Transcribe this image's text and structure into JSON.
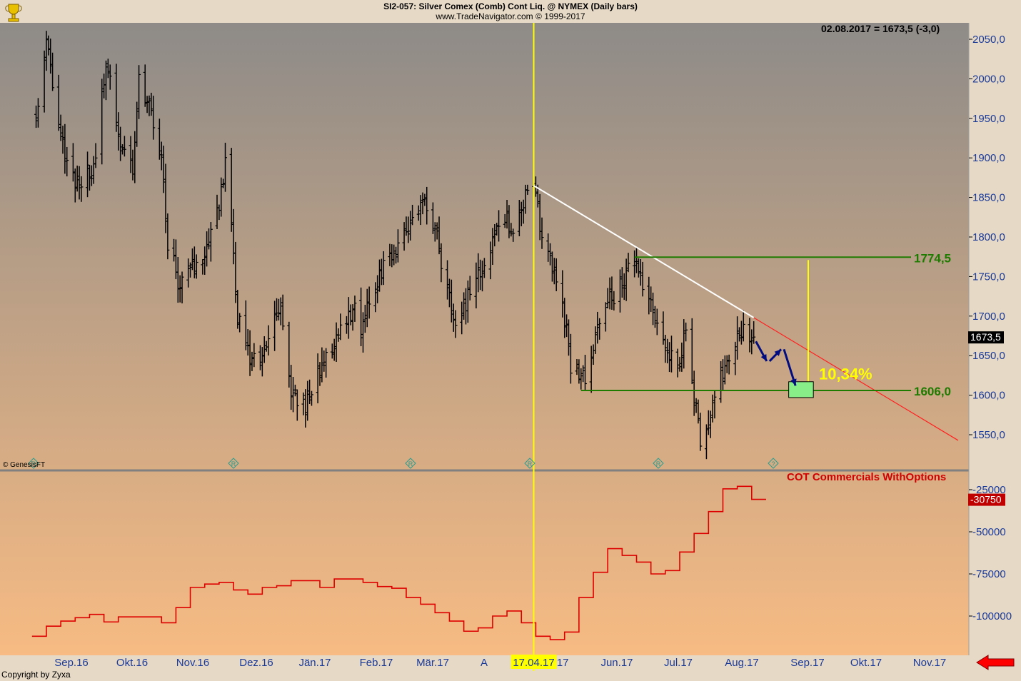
{
  "header": {
    "title": "SI2-057:  Silver Comex (Comb) Cont Liq. @ NYMEX  (Daily bars)",
    "subtitle": "www.TradeNavigator.com © 1999-2017",
    "last_quote": "02.08.2017 = 1673,5 (-3,0)"
  },
  "footer": {
    "copyright": "Copyright by Zyxa",
    "genesis": "© GenesisFT"
  },
  "colors": {
    "background_top": "#8e8b88",
    "background_bottom": "#f7bb83",
    "bars": "#000000",
    "cot_line": "#dd0000",
    "support_resistance": "#1f7a00",
    "vertical_marker": "#ffff00",
    "trendline_white": "#ffffff",
    "trendline_red": "#ff2020",
    "arrows": "#000c80",
    "target_box": "#88ee88",
    "left_arrow": "#ff0000"
  },
  "chart_data": [
    {
      "type": "ohlc",
      "title": "SI2-057:  Silver Comex (Comb) Cont Liq. @ NYMEX  (Daily bars)",
      "x_ticks": [
        "Sep.16",
        "Okt.16",
        "Nov.16",
        "Dez.16",
        "Jän.17",
        "Feb.17",
        "Mär.17",
        "A",
        "Mai.17",
        "Jun.17",
        "Jul.17",
        "Aug.17",
        "Sep.17",
        "Okt.17",
        "Nov.17"
      ],
      "highlighted_date": "17.04.17",
      "y_ticks": [
        "2050,0",
        "2000,0",
        "1950,0",
        "1900,0",
        "1850,0",
        "1800,0",
        "1750,0",
        "1700,0",
        "1650,0",
        "1600,0",
        "1550,0"
      ],
      "ylim": [
        1500,
        2070
      ],
      "last_value_label": "1673,5",
      "waypoints": [
        [
          "2016-08-18",
          1960
        ],
        [
          "2016-08-23",
          2045
        ],
        [
          "2016-08-30",
          1930
        ],
        [
          "2016-09-05",
          1875
        ],
        [
          "2016-09-08",
          1858
        ],
        [
          "2016-09-16",
          1898
        ],
        [
          "2016-09-21",
          2020
        ],
        [
          "2016-09-28",
          1920
        ],
        [
          "2016-10-04",
          1888
        ],
        [
          "2016-10-07",
          2002
        ],
        [
          "2016-10-14",
          1945
        ],
        [
          "2016-10-19",
          1882
        ],
        [
          "2016-10-21",
          1790
        ],
        [
          "2016-10-26",
          1745
        ],
        [
          "2016-11-01",
          1758
        ],
        [
          "2016-11-08",
          1768
        ],
        [
          "2016-11-14",
          1832
        ],
        [
          "2016-11-18",
          1890
        ],
        [
          "2016-11-21",
          1822
        ],
        [
          "2016-11-24",
          1700
        ],
        [
          "2016-12-01",
          1640
        ],
        [
          "2016-12-06",
          1642
        ],
        [
          "2016-12-09",
          1672
        ],
        [
          "2016-12-13",
          1715
        ],
        [
          "2016-12-16",
          1700
        ],
        [
          "2016-12-20",
          1605
        ],
        [
          "2016-12-27",
          1588
        ],
        [
          "2017-01-03",
          1630
        ],
        [
          "2017-01-10",
          1668
        ],
        [
          "2017-01-16",
          1698
        ],
        [
          "2017-01-19",
          1712
        ],
        [
          "2017-01-23",
          1688
        ],
        [
          "2017-01-26",
          1712
        ],
        [
          "2017-02-01",
          1752
        ],
        [
          "2017-02-08",
          1782
        ],
        [
          "2017-02-14",
          1808
        ],
        [
          "2017-02-20",
          1830
        ],
        [
          "2017-02-24",
          1845
        ],
        [
          "2017-03-01",
          1795
        ],
        [
          "2017-03-06",
          1728
        ],
        [
          "2017-03-10",
          1700
        ],
        [
          "2017-03-14",
          1708
        ],
        [
          "2017-03-20",
          1750
        ],
        [
          "2017-03-27",
          1780
        ],
        [
          "2017-03-31",
          1820
        ],
        [
          "2017-04-04",
          1825
        ],
        [
          "2017-04-07",
          1800
        ],
        [
          "2017-04-11",
          1835
        ],
        [
          "2017-04-13",
          1850
        ],
        [
          "2017-04-17",
          1862
        ],
        [
          "2017-04-21",
          1805
        ],
        [
          "2017-04-26",
          1765
        ],
        [
          "2017-05-01",
          1720
        ],
        [
          "2017-05-05",
          1640
        ],
        [
          "2017-05-09",
          1625
        ],
        [
          "2017-05-12",
          1625
        ],
        [
          "2017-05-18",
          1680
        ],
        [
          "2017-05-24",
          1720
        ],
        [
          "2017-05-30",
          1742
        ],
        [
          "2017-06-06",
          1770
        ],
        [
          "2017-06-09",
          1740
        ],
        [
          "2017-06-14",
          1700
        ],
        [
          "2017-06-20",
          1665
        ],
        [
          "2017-06-26",
          1640
        ],
        [
          "2017-06-30",
          1680
        ],
        [
          "2017-07-04",
          1600
        ],
        [
          "2017-07-06",
          1558
        ],
        [
          "2017-07-07",
          1530
        ],
        [
          "2017-07-10",
          1550
        ],
        [
          "2017-07-13",
          1585
        ],
        [
          "2017-07-17",
          1620
        ],
        [
          "2017-07-21",
          1652
        ],
        [
          "2017-07-26",
          1680
        ],
        [
          "2017-07-28",
          1688
        ],
        [
          "2017-08-02",
          1673.5
        ]
      ],
      "overlays": {
        "resistance": {
          "value": 1774.5,
          "label": "1774,5",
          "from": "2017-06-05"
        },
        "support": {
          "value": 1606.0,
          "label": "1606,0",
          "from": "2017-05-10"
        },
        "projection_percent": "10,34%",
        "downtrend_from": [
          "2017-04-17",
          1865
        ],
        "downtrend_to": [
          "2017-08-02",
          1698
        ],
        "projected_path": [
          [
            "2017-08-02",
            1668
          ],
          [
            "2017-08-09",
            1643
          ],
          [
            "2017-08-16",
            1658
          ],
          [
            "2017-08-23",
            1612
          ]
        ],
        "target_zone": {
          "from": "2017-08-19",
          "to": "2017-08-31",
          "low": 1597,
          "high": 1617
        },
        "event_markers": [
          "R",
          "R",
          "R",
          "R",
          "R",
          "?"
        ]
      }
    },
    {
      "type": "line",
      "series": [
        {
          "name": "COT Commercials WithOptions"
        }
      ],
      "y_ticks": [
        "-25000",
        "-50000",
        "-75000",
        "-100000"
      ],
      "ylim": [
        -118000,
        -19000
      ],
      "last_value_label": "-30750",
      "steps": [
        [
          "2016-08-16",
          -112000
        ],
        [
          "2016-08-23",
          -106000
        ],
        [
          "2016-08-30",
          -103000
        ],
        [
          "2016-09-06",
          -101000
        ],
        [
          "2016-09-13",
          -99000
        ],
        [
          "2016-09-20",
          -103500
        ],
        [
          "2016-09-27",
          -100500
        ],
        [
          "2016-10-04",
          -100500
        ],
        [
          "2016-10-11",
          -100500
        ],
        [
          "2016-10-18",
          -104000
        ],
        [
          "2016-10-25",
          -95000
        ],
        [
          "2016-11-01",
          -83000
        ],
        [
          "2016-11-08",
          -81000
        ],
        [
          "2016-11-15",
          -80000
        ],
        [
          "2016-11-22",
          -84500
        ],
        [
          "2016-11-29",
          -87000
        ],
        [
          "2016-12-06",
          -83000
        ],
        [
          "2016-12-13",
          -82000
        ],
        [
          "2016-12-20",
          -79000
        ],
        [
          "2016-12-27",
          -79000
        ],
        [
          "2017-01-03",
          -83000
        ],
        [
          "2017-01-10",
          -78000
        ],
        [
          "2017-01-17",
          -78000
        ],
        [
          "2017-01-24",
          -80000
        ],
        [
          "2017-01-31",
          -82500
        ],
        [
          "2017-02-07",
          -83500
        ],
        [
          "2017-02-14",
          -89000
        ],
        [
          "2017-02-21",
          -93000
        ],
        [
          "2017-02-28",
          -98000
        ],
        [
          "2017-03-07",
          -103000
        ],
        [
          "2017-03-14",
          -109000
        ],
        [
          "2017-03-21",
          -107000
        ],
        [
          "2017-03-28",
          -100000
        ],
        [
          "2017-04-04",
          -97000
        ],
        [
          "2017-04-11",
          -104000
        ],
        [
          "2017-04-18",
          -112000
        ],
        [
          "2017-04-25",
          -114000
        ],
        [
          "2017-05-02",
          -109500
        ],
        [
          "2017-05-09",
          -89000
        ],
        [
          "2017-05-16",
          -74000
        ],
        [
          "2017-05-23",
          -60000
        ],
        [
          "2017-05-30",
          -64000
        ],
        [
          "2017-06-06",
          -68000
        ],
        [
          "2017-06-13",
          -75000
        ],
        [
          "2017-06-20",
          -73000
        ],
        [
          "2017-06-27",
          -62000
        ],
        [
          "2017-07-04",
          -51000
        ],
        [
          "2017-07-11",
          -38000
        ],
        [
          "2017-07-18",
          -24500
        ],
        [
          "2017-07-25",
          -23000
        ],
        [
          "2017-08-01",
          -30750
        ],
        [
          "2017-08-08",
          -30750
        ]
      ]
    }
  ]
}
